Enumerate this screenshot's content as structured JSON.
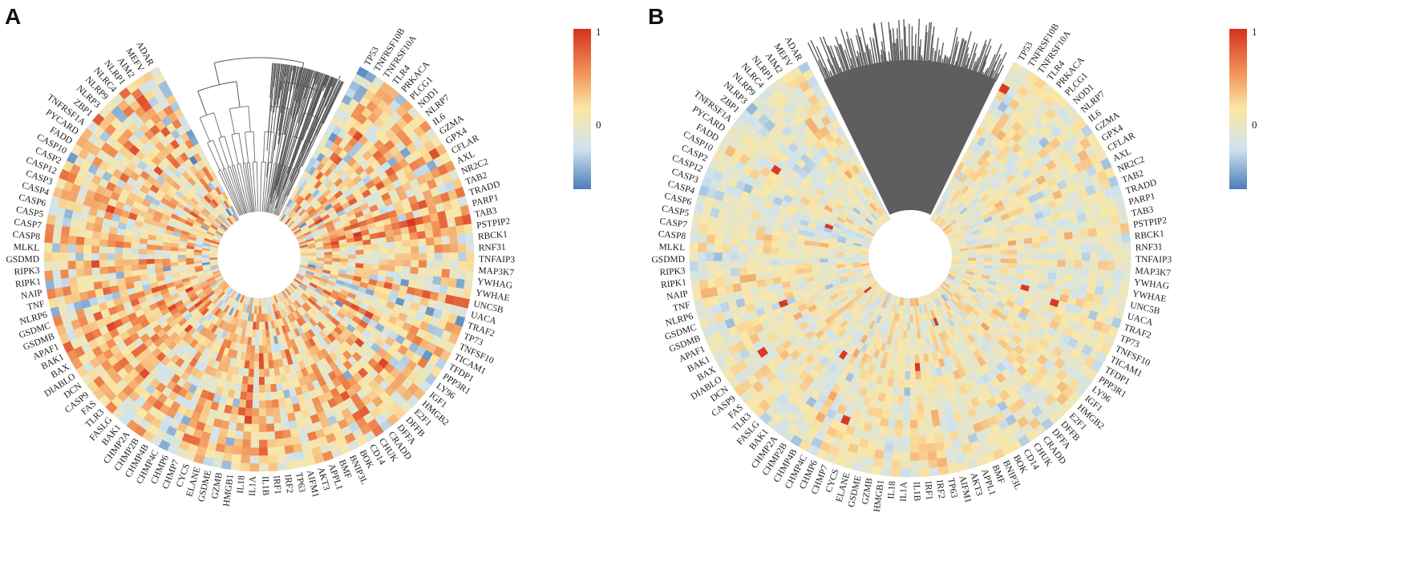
{
  "chart_data": [
    {
      "type": "heatmap",
      "panel": "A",
      "layout": "circular",
      "dendrogram_style": "sparse",
      "texture": "strong",
      "color_scale": {
        "min_label": "",
        "mid_label": "0",
        "max_label": "1",
        "colors": [
          "#4a7db8",
          "#cfe3ef",
          "#fbe7a5",
          "#f08b50",
          "#d7301f"
        ]
      },
      "genes": [
        "TP53",
        "TNFRSF10B",
        "TNFRSF10A",
        "TLR4",
        "PRKACA",
        "PLCG1",
        "NOD1",
        "NLRP7",
        "IL6",
        "GZMA",
        "GPX4",
        "CFLAR",
        "AXL",
        "NR2C2",
        "TAB2",
        "TRADD",
        "PARP1",
        "TAB3",
        "PSTPIP2",
        "RBCK1",
        "RNF31",
        "TNFAIP3",
        "MAP3K7",
        "YWHAG",
        "YWHAE",
        "UNC5B",
        "UACA",
        "TRAF2",
        "TP73",
        "TNFSF10",
        "TICAM1",
        "TFDP1",
        "PPP3R1",
        "LY96",
        "IGF1",
        "HMGB2",
        "E2F1",
        "DFFB",
        "DFFA",
        "CRADD",
        "CHUK",
        "CD14",
        "BOK",
        "BNIP3L",
        "BMF",
        "APPL1",
        "AKT3",
        "AIFM1",
        "TP63",
        "IRF2",
        "IRF1",
        "IL1B",
        "IL1A",
        "IL18",
        "HMGB1",
        "GZMB",
        "GSDME",
        "ELANE",
        "CYCS",
        "CHMP7",
        "CHMP6",
        "CHMP4C",
        "CHMP4B",
        "CHMP2B",
        "CHMP2A",
        "BAK1",
        "FASLG",
        "TLR3",
        "FAS",
        "CASP9",
        "DCN",
        "DIABLO",
        "BAX",
        "BAK1",
        "APAF1",
        "GSDMB",
        "GSDMC",
        "NLRP6",
        "TNF",
        "NAIP",
        "RIPK1",
        "RIPK3",
        "GSDMD",
        "MLKL",
        "CASP8",
        "CASP7",
        "CASP5",
        "CASP6",
        "CASP4",
        "CASP3",
        "CASP12",
        "CASP2",
        "CASP10",
        "FADD",
        "PYCARD",
        "TNFRSF1A",
        "ZBP1",
        "NLRP3",
        "NLRP9",
        "NLRC4",
        "NLRP1",
        "AIM2",
        "MEFV",
        "ADAR"
      ]
    },
    {
      "type": "heatmap",
      "panel": "B",
      "layout": "circular",
      "dendrogram_style": "dense",
      "texture": "weak",
      "color_scale": {
        "min_label": "",
        "mid_label": "0",
        "max_label": "1",
        "colors": [
          "#4a7db8",
          "#cfe3ef",
          "#fbe7a5",
          "#f08b50",
          "#d7301f"
        ]
      },
      "genes": [
        "TP53",
        "TNFRSF10B",
        "TNFRSF10A",
        "TLR4",
        "PRKACA",
        "PLCG1",
        "NOD1",
        "NLRP7",
        "IL6",
        "GZMA",
        "GPX4",
        "CFLAR",
        "AXL",
        "NR2C2",
        "TAB2",
        "TRADD",
        "PARP1",
        "TAB3",
        "PSTPIP2",
        "RBCK1",
        "RNF31",
        "TNFAIP3",
        "MAP3K7",
        "YWHAG",
        "YWHAE",
        "UNC5B",
        "UACA",
        "TRAF2",
        "TP73",
        "TNFSF10",
        "TICAM1",
        "TFDP1",
        "PPP3R1",
        "LY96",
        "IGF1",
        "HMGB2",
        "E2F1",
        "DFFB",
        "DFFA",
        "CRADD",
        "CHUK",
        "CD14",
        "BOK",
        "BNIP3L",
        "BMF",
        "APPL1",
        "AKT3",
        "AIFM1",
        "TP63",
        "IRF2",
        "IRF1",
        "IL1B",
        "IL1A",
        "IL18",
        "HMGB1",
        "GZMB",
        "GSDME",
        "ELANE",
        "CYCS",
        "CHMP7",
        "CHMP6",
        "CHMP4C",
        "CHMP4B",
        "CHMP2B",
        "CHMP2A",
        "BAK1",
        "FASLG",
        "TLR3",
        "FAS",
        "CASP9",
        "DCN",
        "DIABLO",
        "BAX",
        "BAK1",
        "APAF1",
        "GSDMB",
        "GSDMC",
        "NLRP6",
        "TNF",
        "NAIP",
        "RIPK1",
        "RIPK3",
        "GSDMD",
        "MLKL",
        "CASP8",
        "CASP7",
        "CASP5",
        "CASP6",
        "CASP4",
        "CASP3",
        "CASP12",
        "CASP2",
        "CASP10",
        "FADD",
        "PYCARD",
        "TNFRSF1A",
        "ZBP1",
        "NLRP3",
        "NLRP9",
        "NLRC4",
        "NLRP1",
        "AIM2",
        "MEFV",
        "ADAR"
      ]
    }
  ]
}
